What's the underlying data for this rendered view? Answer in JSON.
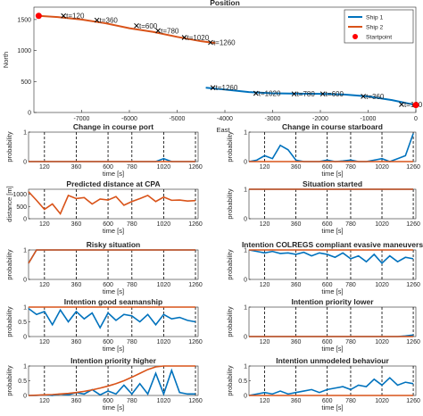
{
  "colors": {
    "ship1": "#0072BD",
    "ship2": "#D95319",
    "start": "#FF0000",
    "marker_line": "#000000"
  },
  "chart_data": [
    {
      "type": "line",
      "title": "Position",
      "xlabel": "East",
      "ylabel": "North",
      "xlim": [
        -8000,
        0
      ],
      "ylim": [
        0,
        1700
      ],
      "xticks": [
        -7000,
        -6000,
        -5000,
        -4000,
        -3000,
        -2000,
        -1000,
        0
      ],
      "yticks": [
        0,
        500,
        1000,
        1500
      ],
      "legend": {
        "position": "top-right",
        "entries": [
          "Ship 1",
          "Ship 2",
          "Startpoint"
        ]
      },
      "series": [
        {
          "name": "Ship 1",
          "x": [
            0,
            -500,
            -1000,
            -1500,
            -2000,
            -2500,
            -3000,
            -3500,
            -4000,
            -4400
          ],
          "y": [
            120,
            200,
            260,
            290,
            300,
            305,
            310,
            330,
            370,
            400
          ]
        },
        {
          "name": "Ship 2",
          "x": [
            -7900,
            -7500,
            -7000,
            -6500,
            -6000,
            -5500,
            -5000,
            -4500,
            -4200
          ],
          "y": [
            1560,
            1540,
            1500,
            1440,
            1360,
            1300,
            1220,
            1150,
            1120
          ]
        }
      ],
      "startpoints": [
        {
          "x": 0,
          "y": 120
        },
        {
          "x": -7900,
          "y": 1560
        }
      ],
      "markers": [
        {
          "label": "t=120",
          "x": -7380,
          "y": 1560
        },
        {
          "label": "t=360",
          "x": -6680,
          "y": 1490
        },
        {
          "label": "t=600",
          "x": -5850,
          "y": 1400
        },
        {
          "label": "t=780",
          "x": -5400,
          "y": 1320
        },
        {
          "label": "t=1020",
          "x": -4850,
          "y": 1210
        },
        {
          "label": "t=1260",
          "x": -4300,
          "y": 1130
        },
        {
          "label": "t=1260",
          "x": -4250,
          "y": 400
        },
        {
          "label": "t=1020",
          "x": -3350,
          "y": 310
        },
        {
          "label": "t=780",
          "x": -2550,
          "y": 300
        },
        {
          "label": "t=600",
          "x": -1950,
          "y": 300
        },
        {
          "label": "t=360",
          "x": -1100,
          "y": 260
        },
        {
          "label": "t=120",
          "x": -300,
          "y": 130
        }
      ]
    },
    {
      "type": "line",
      "title": "Change in course port",
      "xlabel": "time [s]",
      "ylabel": "probability",
      "xlim": [
        0,
        1280
      ],
      "ylim": [
        0,
        1
      ],
      "xticks": [
        120,
        360,
        600,
        780,
        1020,
        1260
      ],
      "yticks": [
        0,
        1
      ],
      "vlines": [
        120,
        360,
        600,
        780,
        1020,
        1260
      ],
      "x": [
        0,
        60,
        120,
        180,
        240,
        300,
        360,
        420,
        480,
        540,
        600,
        660,
        720,
        780,
        840,
        900,
        960,
        1020,
        1080,
        1140,
        1200,
        1260
      ],
      "series": [
        {
          "name": "Ship 1",
          "values": [
            0,
            0,
            0,
            0,
            0,
            0,
            0,
            0,
            0,
            0,
            0,
            0,
            0,
            0,
            0,
            0,
            0,
            0.1,
            0,
            0,
            0,
            0
          ]
        },
        {
          "name": "Ship 2",
          "values": [
            0,
            0,
            0,
            0,
            0,
            0,
            0,
            0,
            0,
            0,
            0,
            0,
            0,
            0,
            0,
            0,
            0,
            0,
            0,
            0,
            0,
            0
          ]
        }
      ]
    },
    {
      "type": "line",
      "title": "Change in course starboard",
      "xlabel": "time [s]",
      "ylabel": "probability",
      "xlim": [
        0,
        1280
      ],
      "ylim": [
        0,
        1
      ],
      "xticks": [
        120,
        360,
        600,
        780,
        1020,
        1260
      ],
      "yticks": [
        0,
        1
      ],
      "vlines": [
        120,
        360,
        600,
        780,
        1020,
        1260
      ],
      "x": [
        0,
        60,
        120,
        180,
        240,
        300,
        360,
        420,
        480,
        540,
        600,
        660,
        720,
        780,
        840,
        900,
        960,
        1020,
        1080,
        1140,
        1200,
        1260
      ],
      "series": [
        {
          "name": "Ship 1",
          "values": [
            0,
            0.05,
            0.2,
            0.1,
            0.55,
            0.4,
            0.05,
            0,
            0,
            0,
            0.05,
            0,
            0.02,
            0.05,
            0,
            0,
            0.05,
            0.1,
            0,
            0.1,
            0.2,
            0.95
          ]
        },
        {
          "name": "Ship 2",
          "values": [
            0,
            0,
            0,
            0,
            0,
            0,
            0,
            0,
            0,
            0,
            0,
            0,
            0,
            0,
            0,
            0,
            0,
            0,
            0,
            0,
            0,
            0
          ]
        }
      ]
    },
    {
      "type": "line",
      "title": "Predicted distance at CPA",
      "xlabel": "time [s]",
      "ylabel": "distance [m]",
      "xlim": [
        0,
        1280
      ],
      "ylim": [
        0,
        1200
      ],
      "xticks": [
        120,
        360,
        600,
        780,
        1020,
        1260
      ],
      "yticks": [
        0,
        500,
        1000
      ],
      "vlines": [
        120,
        360,
        600,
        780,
        1020,
        1260
      ],
      "x": [
        0,
        60,
        120,
        180,
        240,
        300,
        360,
        420,
        480,
        540,
        600,
        660,
        720,
        780,
        840,
        900,
        960,
        1020,
        1080,
        1140,
        1200,
        1260
      ],
      "series": [
        {
          "name": "Ship 2",
          "values": [
            1100,
            750,
            380,
            600,
            200,
            950,
            820,
            860,
            600,
            800,
            760,
            900,
            550,
            700,
            820,
            950,
            700,
            880,
            750,
            760,
            720,
            740
          ]
        }
      ]
    },
    {
      "type": "line",
      "title": "Situation started",
      "xlabel": "time [s]",
      "ylabel": "probability",
      "xlim": [
        0,
        1280
      ],
      "ylim": [
        0,
        1
      ],
      "xticks": [
        120,
        360,
        600,
        780,
        1020,
        1260
      ],
      "yticks": [
        0,
        1
      ],
      "vlines": [
        120,
        360,
        600,
        780,
        1020,
        1260
      ],
      "x": [
        0,
        60,
        120,
        180,
        240,
        300,
        360,
        420,
        480,
        540,
        600,
        660,
        720,
        780,
        840,
        900,
        960,
        1020,
        1080,
        1140,
        1200,
        1260
      ],
      "series": [
        {
          "name": "Ship 1",
          "values": [
            1,
            1,
            1,
            1,
            1,
            1,
            1,
            1,
            1,
            1,
            1,
            1,
            1,
            1,
            1,
            1,
            1,
            1,
            1,
            1,
            1,
            1
          ]
        },
        {
          "name": "Ship 2",
          "values": [
            1,
            1,
            1,
            1,
            1,
            1,
            1,
            1,
            1,
            1,
            1,
            1,
            1,
            1,
            1,
            1,
            1,
            1,
            1,
            1,
            1,
            1
          ]
        }
      ]
    },
    {
      "type": "line",
      "title": "Risky situation",
      "xlabel": "time [s]",
      "ylabel": "probability",
      "xlim": [
        0,
        1280
      ],
      "ylim": [
        0,
        1
      ],
      "xticks": [
        120,
        360,
        600,
        780,
        1020,
        1260
      ],
      "yticks": [
        0,
        1
      ],
      "vlines": [
        120,
        360,
        600,
        780,
        1020,
        1260
      ],
      "x": [
        0,
        60,
        120,
        180,
        240,
        300,
        360,
        420,
        480,
        540,
        600,
        660,
        720,
        780,
        840,
        900,
        960,
        1020,
        1080,
        1140,
        1200,
        1260
      ],
      "series": [
        {
          "name": "Ship 1",
          "values": [
            0.55,
            1,
            1,
            1,
            1,
            1,
            1,
            1,
            1,
            1,
            1,
            1,
            1,
            1,
            1,
            1,
            1,
            1,
            1,
            1,
            1,
            1
          ]
        },
        {
          "name": "Ship 2",
          "values": [
            0.55,
            1,
            1,
            1,
            1,
            1,
            1,
            1,
            1,
            1,
            1,
            1,
            1,
            1,
            1,
            1,
            1,
            1,
            1,
            1,
            1,
            1
          ]
        }
      ]
    },
    {
      "type": "line",
      "title": "Intention COLREGS compliant evasive maneuvers",
      "xlabel": "time [s]",
      "ylabel": "probability",
      "xlim": [
        0,
        1280
      ],
      "ylim": [
        0,
        1
      ],
      "xticks": [
        120,
        360,
        600,
        780,
        1020,
        1260
      ],
      "yticks": [
        0,
        1
      ],
      "vlines": [
        120,
        360,
        600,
        780,
        1020,
        1260
      ],
      "x": [
        0,
        60,
        120,
        180,
        240,
        300,
        360,
        420,
        480,
        540,
        600,
        660,
        720,
        780,
        840,
        900,
        960,
        1020,
        1080,
        1140,
        1200,
        1260
      ],
      "series": [
        {
          "name": "Ship 1",
          "values": [
            1,
            0.95,
            0.9,
            0.95,
            0.88,
            0.9,
            0.85,
            0.92,
            0.8,
            0.9,
            0.85,
            0.75,
            0.9,
            0.7,
            0.8,
            0.6,
            0.85,
            0.55,
            0.8,
            0.6,
            0.75,
            0.7
          ]
        },
        {
          "name": "Ship 2",
          "values": [
            1,
            1,
            1,
            1,
            1,
            1,
            1,
            1,
            1,
            1,
            1,
            1,
            1,
            1,
            1,
            1,
            1,
            1,
            1,
            1,
            1,
            1
          ]
        }
      ]
    },
    {
      "type": "line",
      "title": "Intention good seamanship",
      "xlabel": "time [s]",
      "ylabel": "probability",
      "xlim": [
        0,
        1280
      ],
      "ylim": [
        0,
        1
      ],
      "xticks": [
        120,
        360,
        600,
        780,
        1020,
        1260
      ],
      "yticks": [
        0,
        0.5,
        1
      ],
      "vlines": [
        120,
        360,
        600,
        780,
        1020,
        1260
      ],
      "x": [
        0,
        60,
        120,
        180,
        240,
        300,
        360,
        420,
        480,
        540,
        600,
        660,
        720,
        780,
        840,
        900,
        960,
        1020,
        1080,
        1140,
        1200,
        1260
      ],
      "series": [
        {
          "name": "Ship 1",
          "values": [
            0.95,
            0.75,
            0.85,
            0.4,
            0.9,
            0.5,
            0.85,
            0.6,
            0.8,
            0.3,
            0.8,
            0.55,
            0.75,
            0.7,
            0.5,
            0.75,
            0.4,
            0.75,
            0.6,
            0.65,
            0.55,
            0.5
          ]
        },
        {
          "name": "Ship 2",
          "values": [
            1,
            1,
            1,
            1,
            1,
            1,
            1,
            1,
            1,
            1,
            1,
            1,
            1,
            1,
            1,
            1,
            1,
            1,
            1,
            1,
            1,
            1
          ]
        }
      ]
    },
    {
      "type": "line",
      "title": "Intention priority lower",
      "xlabel": "time [s]",
      "ylabel": "probability",
      "xlim": [
        0,
        1280
      ],
      "ylim": [
        0,
        1
      ],
      "xticks": [
        120,
        360,
        600,
        780,
        1020,
        1260
      ],
      "yticks": [
        0,
        1
      ],
      "vlines": [
        120,
        360,
        600,
        780,
        1020,
        1260
      ],
      "x": [
        0,
        60,
        120,
        180,
        240,
        300,
        360,
        420,
        480,
        540,
        600,
        660,
        720,
        780,
        840,
        900,
        960,
        1020,
        1080,
        1140,
        1200,
        1260
      ],
      "series": [
        {
          "name": "Ship 1",
          "values": [
            0,
            0,
            0,
            0,
            0,
            0,
            0,
            0,
            0,
            0,
            0,
            0,
            0,
            0,
            0,
            0,
            0,
            0,
            0,
            0,
            0.02,
            0.05
          ]
        },
        {
          "name": "Ship 2",
          "values": [
            0,
            0,
            0,
            0,
            0,
            0,
            0,
            0,
            0,
            0,
            0,
            0,
            0,
            0,
            0,
            0,
            0,
            0,
            0,
            0,
            0,
            0
          ]
        }
      ]
    },
    {
      "type": "line",
      "title": "Intention priority higher",
      "xlabel": "time [s]",
      "ylabel": "probability",
      "xlim": [
        0,
        1280
      ],
      "ylim": [
        0,
        1
      ],
      "xticks": [
        120,
        360,
        600,
        780,
        1020,
        1260
      ],
      "yticks": [
        0,
        0.5,
        1
      ],
      "vlines": [
        120,
        360,
        600,
        780,
        1020,
        1260
      ],
      "x": [
        0,
        60,
        120,
        180,
        240,
        300,
        360,
        420,
        480,
        540,
        600,
        660,
        720,
        780,
        840,
        900,
        960,
        1020,
        1080,
        1140,
        1200,
        1260
      ],
      "series": [
        {
          "name": "Ship 1",
          "values": [
            0,
            0,
            0.02,
            0,
            0.05,
            0.02,
            0.1,
            0.05,
            0.2,
            0.02,
            0.15,
            0.05,
            0.35,
            0.05,
            0.4,
            0.05,
            0.75,
            0.05,
            0.85,
            0.1,
            0.05,
            0.05
          ]
        },
        {
          "name": "Ship 2",
          "values": [
            0,
            0.01,
            0.02,
            0.03,
            0.05,
            0.07,
            0.1,
            0.14,
            0.19,
            0.25,
            0.32,
            0.4,
            0.5,
            0.62,
            0.75,
            0.88,
            0.97,
            1,
            1,
            1,
            1,
            1
          ]
        }
      ]
    },
    {
      "type": "line",
      "title": "Intention unmodeled behaviour",
      "xlabel": "time [s]",
      "ylabel": "probability",
      "xlim": [
        0,
        1280
      ],
      "ylim": [
        0,
        1
      ],
      "xticks": [
        120,
        360,
        600,
        780,
        1020,
        1260
      ],
      "yticks": [
        0,
        0.5,
        1
      ],
      "vlines": [
        120,
        360,
        600,
        780,
        1020,
        1260
      ],
      "x": [
        0,
        60,
        120,
        180,
        240,
        300,
        360,
        420,
        480,
        540,
        600,
        660,
        720,
        780,
        840,
        900,
        960,
        1020,
        1080,
        1140,
        1200,
        1260
      ],
      "series": [
        {
          "name": "Ship 1",
          "values": [
            0,
            0.05,
            0.1,
            0.05,
            0.15,
            0.05,
            0.1,
            0.15,
            0.2,
            0.1,
            0.2,
            0.25,
            0.3,
            0.2,
            0.35,
            0.3,
            0.55,
            0.35,
            0.6,
            0.35,
            0.45,
            0.4
          ]
        },
        {
          "name": "Ship 2",
          "values": [
            0,
            0,
            0,
            0,
            0,
            0,
            0,
            0,
            0,
            0,
            0,
            0,
            0,
            0,
            0,
            0,
            0,
            0,
            0,
            0,
            0,
            0
          ]
        }
      ]
    }
  ]
}
